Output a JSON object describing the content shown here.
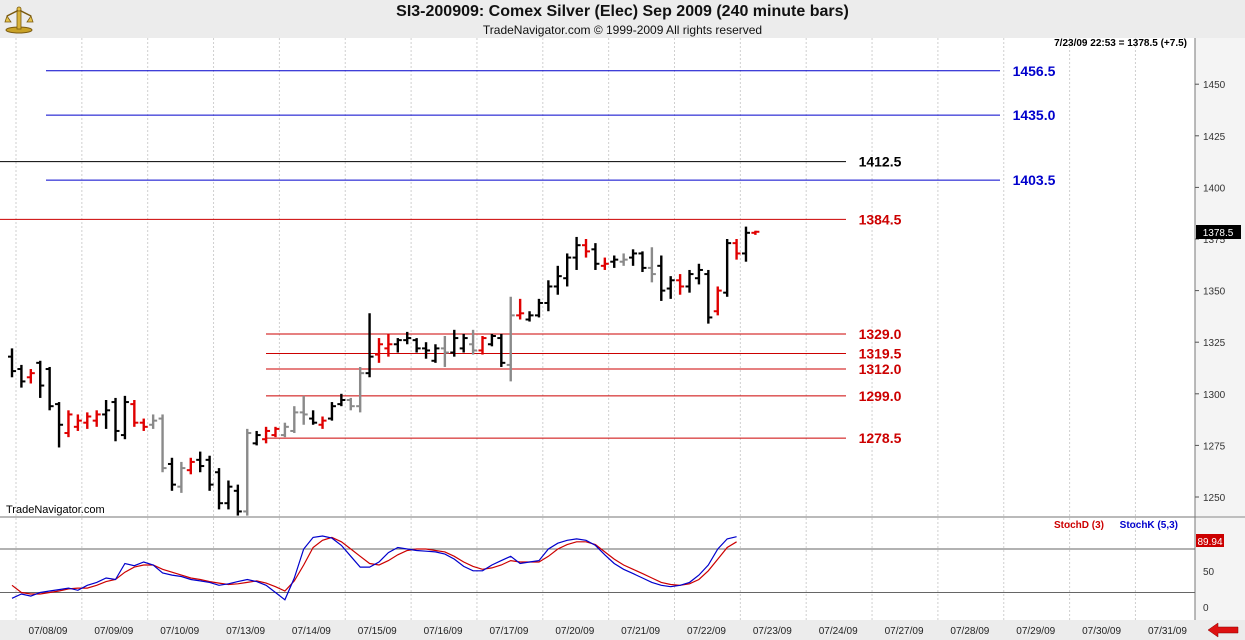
{
  "header": {
    "title": "SI3-200909:  Comex Silver (Elec) Sep 2009  (240 minute bars)",
    "subtitle": "TradeNavigator.com © 1999-2009 All rights reserved",
    "info": "7/23/09 22:53 = 1378.5 (+7.5)",
    "watermark": "TradeNavigator.com"
  },
  "chart_data": {
    "type": "bar",
    "price_axis": {
      "ticks": [
        1250,
        1275,
        1300,
        1325,
        1350,
        1375,
        1400,
        1425,
        1450
      ],
      "ylim": [
        1239,
        1474
      ]
    },
    "dates": [
      "07/08/09",
      "07/09/09",
      "07/10/09",
      "07/13/09",
      "07/14/09",
      "07/15/09",
      "07/16/09",
      "07/17/09",
      "07/20/09",
      "07/21/09",
      "07/22/09",
      "07/23/09",
      "07/24/09",
      "07/27/09",
      "07/28/09",
      "07/29/09",
      "07/30/09",
      "07/31/09"
    ],
    "last_price": "1378.5",
    "levels": [
      {
        "label": "1456.5",
        "value": 1456.5,
        "color": "#0000cc"
      },
      {
        "label": "1435.0",
        "value": 1435.0,
        "color": "#0000cc"
      },
      {
        "label": "1412.5",
        "value": 1412.5,
        "color": "#000000"
      },
      {
        "label": "1403.5",
        "value": 1403.5,
        "color": "#0000cc"
      },
      {
        "label": "1384.5",
        "value": 1384.5,
        "color": "#cc0000"
      },
      {
        "label": "1329.0",
        "value": 1329.0,
        "color": "#cc0000"
      },
      {
        "label": "1319.5",
        "value": 1319.5,
        "color": "#cc0000"
      },
      {
        "label": "1312.0",
        "value": 1312.0,
        "color": "#cc0000"
      },
      {
        "label": "1299.0",
        "value": 1299.0,
        "color": "#cc0000"
      },
      {
        "label": "1278.5",
        "value": 1278.5,
        "color": "#cc0000"
      }
    ],
    "bars": [
      {
        "h": 1322,
        "l": 1308,
        "o": 1318,
        "c": 1311,
        "col": "k"
      },
      {
        "h": 1314,
        "l": 1303,
        "o": 1312,
        "c": 1306,
        "col": "k"
      },
      {
        "h": 1312,
        "l": 1305,
        "o": 1308,
        "c": 1310,
        "col": "r"
      },
      {
        "h": 1316,
        "l": 1298,
        "o": 1315,
        "c": 1304,
        "col": "k"
      },
      {
        "h": 1313,
        "l": 1292,
        "o": 1312,
        "c": 1294,
        "col": "k"
      },
      {
        "h": 1296,
        "l": 1274,
        "o": 1295,
        "c": 1285,
        "col": "k"
      },
      {
        "h": 1292,
        "l": 1279,
        "o": 1281,
        "c": 1290,
        "col": "r"
      },
      {
        "h": 1290,
        "l": 1282,
        "o": 1284,
        "c": 1287,
        "col": "r"
      },
      {
        "h": 1291,
        "l": 1283,
        "o": 1286,
        "c": 1289,
        "col": "r"
      },
      {
        "h": 1292,
        "l": 1284,
        "o": 1287,
        "c": 1290,
        "col": "r"
      },
      {
        "h": 1297,
        "l": 1283,
        "o": 1290,
        "c": 1292,
        "col": "k"
      },
      {
        "h": 1298,
        "l": 1277,
        "o": 1296,
        "c": 1282,
        "col": "k"
      },
      {
        "h": 1299,
        "l": 1278,
        "o": 1280,
        "c": 1296,
        "col": "k"
      },
      {
        "h": 1297,
        "l": 1284,
        "o": 1295,
        "c": 1286,
        "col": "r"
      },
      {
        "h": 1288,
        "l": 1282,
        "o": 1286,
        "c": 1284,
        "col": "r"
      },
      {
        "h": 1290,
        "l": 1283,
        "o": 1285,
        "c": 1287,
        "col": "g"
      },
      {
        "h": 1290,
        "l": 1262,
        "o": 1288,
        "c": 1264,
        "col": "g"
      },
      {
        "h": 1269,
        "l": 1253,
        "o": 1266,
        "c": 1256,
        "col": "k"
      },
      {
        "h": 1267,
        "l": 1252,
        "o": 1255,
        "c": 1264,
        "col": "g"
      },
      {
        "h": 1269,
        "l": 1261,
        "o": 1263,
        "c": 1267,
        "col": "r"
      },
      {
        "h": 1272,
        "l": 1262,
        "o": 1268,
        "c": 1265,
        "col": "k"
      },
      {
        "h": 1270,
        "l": 1253,
        "o": 1268,
        "c": 1256,
        "col": "k"
      },
      {
        "h": 1264,
        "l": 1244,
        "o": 1262,
        "c": 1247,
        "col": "k"
      },
      {
        "h": 1258,
        "l": 1244,
        "o": 1247,
        "c": 1255,
        "col": "k"
      },
      {
        "h": 1256,
        "l": 1241,
        "o": 1253,
        "c": 1243,
        "col": "k"
      },
      {
        "h": 1283,
        "l": 1241,
        "o": 1243,
        "c": 1281,
        "col": "g"
      },
      {
        "h": 1282,
        "l": 1275,
        "o": 1276,
        "c": 1280,
        "col": "k"
      },
      {
        "h": 1284,
        "l": 1276,
        "o": 1278,
        "c": 1282,
        "col": "r"
      },
      {
        "h": 1284,
        "l": 1279,
        "o": 1280,
        "c": 1283,
        "col": "r"
      },
      {
        "h": 1286,
        "l": 1279,
        "o": 1280,
        "c": 1284,
        "col": "g"
      },
      {
        "h": 1294,
        "l": 1281,
        "o": 1282,
        "c": 1291,
        "col": "g"
      },
      {
        "h": 1299,
        "l": 1285,
        "o": 1291,
        "c": 1290,
        "col": "g"
      },
      {
        "h": 1292,
        "l": 1285,
        "o": 1288,
        "c": 1286,
        "col": "k"
      },
      {
        "h": 1289,
        "l": 1283,
        "o": 1285,
        "c": 1287,
        "col": "r"
      },
      {
        "h": 1296,
        "l": 1287,
        "o": 1288,
        "c": 1294,
        "col": "k"
      },
      {
        "h": 1300,
        "l": 1294,
        "o": 1295,
        "c": 1297,
        "col": "k"
      },
      {
        "h": 1298,
        "l": 1292,
        "o": 1297,
        "c": 1294,
        "col": "g"
      },
      {
        "h": 1313,
        "l": 1291,
        "o": 1294,
        "c": 1310,
        "col": "g"
      },
      {
        "h": 1339,
        "l": 1308,
        "o": 1310,
        "c": 1318,
        "col": "k"
      },
      {
        "h": 1327,
        "l": 1315,
        "o": 1319,
        "c": 1324,
        "col": "r"
      },
      {
        "h": 1329,
        "l": 1318,
        "o": 1322,
        "c": 1324,
        "col": "r"
      },
      {
        "h": 1327,
        "l": 1320,
        "o": 1324,
        "c": 1326,
        "col": "k"
      },
      {
        "h": 1330,
        "l": 1324,
        "o": 1326,
        "c": 1327,
        "col": "k"
      },
      {
        "h": 1327,
        "l": 1320,
        "o": 1326,
        "c": 1322,
        "col": "k"
      },
      {
        "h": 1325,
        "l": 1317,
        "o": 1322,
        "c": 1321,
        "col": "k"
      },
      {
        "h": 1324,
        "l": 1315,
        "o": 1316,
        "c": 1322,
        "col": "k"
      },
      {
        "h": 1328,
        "l": 1313,
        "o": 1322,
        "c": 1320,
        "col": "g"
      },
      {
        "h": 1331,
        "l": 1318,
        "o": 1320,
        "c": 1327,
        "col": "k"
      },
      {
        "h": 1329,
        "l": 1320,
        "o": 1322,
        "c": 1327,
        "col": "k"
      },
      {
        "h": 1331,
        "l": 1319,
        "o": 1324,
        "c": 1321,
        "col": "g"
      },
      {
        "h": 1328,
        "l": 1319,
        "o": 1321,
        "c": 1327,
        "col": "r"
      },
      {
        "h": 1329,
        "l": 1323,
        "o": 1324,
        "c": 1328,
        "col": "k"
      },
      {
        "h": 1329,
        "l": 1313,
        "o": 1327,
        "c": 1315,
        "col": "k"
      },
      {
        "h": 1347,
        "l": 1306,
        "o": 1314,
        "c": 1338,
        "col": "g"
      },
      {
        "h": 1346,
        "l": 1336,
        "o": 1338,
        "c": 1339,
        "col": "r"
      },
      {
        "h": 1340,
        "l": 1335,
        "o": 1336,
        "c": 1338,
        "col": "k"
      },
      {
        "h": 1346,
        "l": 1337,
        "o": 1338,
        "c": 1344,
        "col": "k"
      },
      {
        "h": 1355,
        "l": 1340,
        "o": 1344,
        "c": 1352,
        "col": "k"
      },
      {
        "h": 1362,
        "l": 1348,
        "o": 1352,
        "c": 1357,
        "col": "k"
      },
      {
        "h": 1368,
        "l": 1352,
        "o": 1356,
        "c": 1366,
        "col": "k"
      },
      {
        "h": 1376,
        "l": 1360,
        "o": 1366,
        "c": 1372,
        "col": "k"
      },
      {
        "h": 1375,
        "l": 1366,
        "o": 1372,
        "c": 1369,
        "col": "r"
      },
      {
        "h": 1373,
        "l": 1360,
        "o": 1370,
        "c": 1363,
        "col": "k"
      },
      {
        "h": 1366,
        "l": 1360,
        "o": 1362,
        "c": 1363,
        "col": "r"
      },
      {
        "h": 1367,
        "l": 1361,
        "o": 1364,
        "c": 1365,
        "col": "k"
      },
      {
        "h": 1368,
        "l": 1362,
        "o": 1364,
        "c": 1365,
        "col": "g"
      },
      {
        "h": 1370,
        "l": 1362,
        "o": 1366,
        "c": 1368,
        "col": "k"
      },
      {
        "h": 1369,
        "l": 1359,
        "o": 1368,
        "c": 1361,
        "col": "k"
      },
      {
        "h": 1371,
        "l": 1354,
        "o": 1361,
        "c": 1358,
        "col": "g"
      },
      {
        "h": 1367,
        "l": 1345,
        "o": 1362,
        "c": 1350,
        "col": "k"
      },
      {
        "h": 1357,
        "l": 1346,
        "o": 1351,
        "c": 1355,
        "col": "k"
      },
      {
        "h": 1358,
        "l": 1348,
        "o": 1355,
        "c": 1352,
        "col": "r"
      },
      {
        "h": 1360,
        "l": 1349,
        "o": 1352,
        "c": 1358,
        "col": "k"
      },
      {
        "h": 1363,
        "l": 1353,
        "o": 1356,
        "c": 1360,
        "col": "k"
      },
      {
        "h": 1360,
        "l": 1334,
        "o": 1358,
        "c": 1337,
        "col": "k"
      },
      {
        "h": 1352,
        "l": 1338,
        "o": 1340,
        "c": 1350,
        "col": "r"
      },
      {
        "h": 1375,
        "l": 1347,
        "o": 1349,
        "c": 1373,
        "col": "k"
      },
      {
        "h": 1375,
        "l": 1365,
        "o": 1373,
        "c": 1368,
        "col": "r"
      },
      {
        "h": 1381,
        "l": 1364,
        "o": 1368,
        "c": 1378,
        "col": "k"
      },
      {
        "h": 1379,
        "l": 1377,
        "o": 1378,
        "c": 1378.5,
        "col": "r"
      }
    ],
    "stochastic": {
      "labels": [
        "StochD (3)",
        "StochK (5,3)"
      ],
      "colors": [
        "#cc0000",
        "#0000cc"
      ],
      "ticks": [
        0,
        50
      ],
      "last_value": "89.94",
      "ref_lines": [
        20,
        80
      ],
      "k": [
        12,
        18,
        15,
        20,
        22,
        24,
        26,
        23,
        30,
        34,
        40,
        38,
        60,
        57,
        62,
        58,
        47,
        44,
        42,
        38,
        36,
        34,
        30,
        32,
        35,
        38,
        35,
        30,
        20,
        10,
        40,
        80,
        96,
        98,
        95,
        85,
        70,
        55,
        55,
        62,
        75,
        82,
        80,
        78,
        77,
        76,
        73,
        66,
        56,
        50,
        50,
        58,
        64,
        70,
        60,
        62,
        64,
        80,
        88,
        92,
        94,
        92,
        85,
        72,
        60,
        52,
        46,
        40,
        34,
        30,
        28,
        30,
        34,
        44,
        58,
        80,
        94,
        97
      ],
      "d": [
        30,
        20,
        18,
        18,
        20,
        22,
        25,
        26,
        26,
        30,
        35,
        38,
        48,
        55,
        58,
        58,
        52,
        48,
        44,
        40,
        38,
        35,
        33,
        31,
        32,
        34,
        36,
        33,
        28,
        22,
        36,
        58,
        82,
        92,
        96,
        90,
        80,
        70,
        60,
        58,
        64,
        72,
        78,
        80,
        80,
        78,
        76,
        70,
        62,
        56,
        52,
        54,
        58,
        64,
        62,
        62,
        62,
        70,
        80,
        86,
        90,
        90,
        86,
        76,
        66,
        58,
        52,
        46,
        40,
        34,
        31,
        30,
        32,
        38,
        50,
        66,
        82,
        90
      ]
    }
  }
}
